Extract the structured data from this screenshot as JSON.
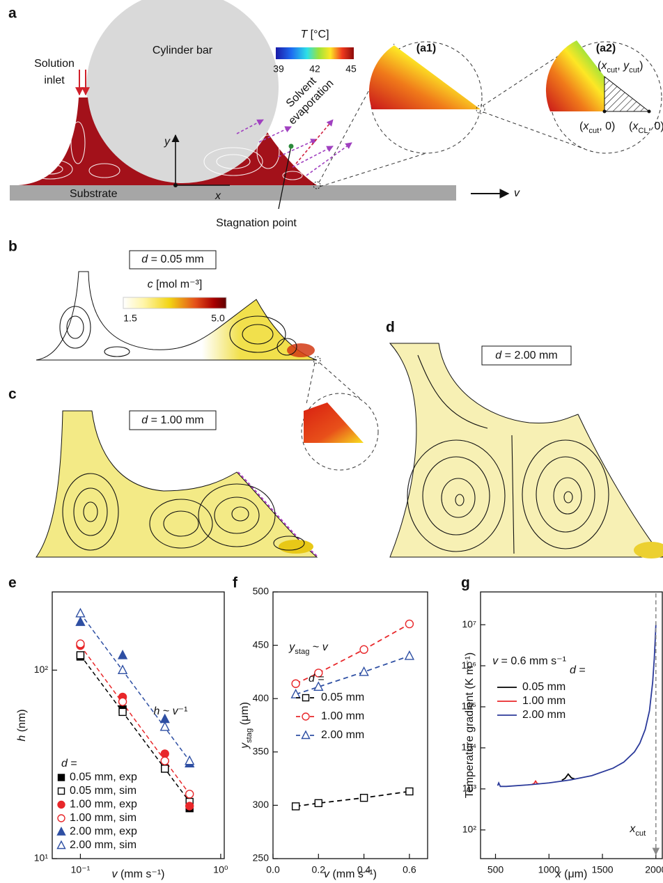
{
  "figure": {
    "a": {
      "label": "a",
      "cylinder": "Cylinder bar",
      "inlet": [
        "Solution",
        "inlet"
      ],
      "substrate": "Substrate",
      "colorbar_title": [
        {
          "i": "T"
        },
        {
          "t": " [°C]"
        }
      ],
      "colorbar_ticks": [
        "39",
        "42",
        "45"
      ],
      "evaporation": [
        "Solvent",
        "evaporation"
      ],
      "y_axis": [
        {
          "i": "y"
        }
      ],
      "x_axis": [
        {
          "i": "x"
        }
      ],
      "stagnation": "Stagnation point",
      "velocity": [
        {
          "i": "v"
        }
      ],
      "inset1": "(a1)",
      "inset2": "(a2)",
      "point_top": [
        {
          "t": "("
        },
        {
          "i": "x"
        },
        {
          "sub": "cut"
        },
        {
          "t": ", "
        },
        {
          "i": "y"
        },
        {
          "sub": "cut"
        },
        {
          "t": ")"
        }
      ],
      "point_cut": [
        {
          "t": "("
        },
        {
          "i": "x"
        },
        {
          "sub": "cut"
        },
        {
          "t": ", 0)"
        }
      ],
      "point_cl": [
        {
          "t": "("
        },
        {
          "i": "x"
        },
        {
          "sub": "CL"
        },
        {
          "t": ", 0),"
        }
      ]
    },
    "b": {
      "label": "b",
      "condition": [
        {
          "i": "d"
        },
        {
          "t": " = 0.05 mm"
        }
      ],
      "colorbar_title": [
        {
          "i": "c"
        },
        {
          "t": " [mol m⁻³]"
        }
      ],
      "colorbar_ticks": [
        "1.5",
        "5.0"
      ]
    },
    "c": {
      "label": "c",
      "condition": [
        {
          "i": "d"
        },
        {
          "t": " = 1.00 mm"
        }
      ]
    },
    "d": {
      "label": "d",
      "condition": [
        {
          "i": "d"
        },
        {
          "t": " = 2.00 mm"
        }
      ]
    }
  },
  "chart_data": [
    {
      "type": "scatter",
      "label": "e",
      "xscale": "log",
      "yscale": "log",
      "xlim": [
        0.063,
        1.06
      ],
      "ylim": [
        10,
        260
      ],
      "xticks": [
        {
          "value": 0.1,
          "label": "10⁻¹"
        },
        {
          "value": 1,
          "label": "10⁰"
        }
      ],
      "yticks": [
        {
          "value": 10,
          "label": "10¹"
        },
        {
          "value": 100,
          "label": "10²"
        }
      ],
      "xlabel": [
        {
          "i": "v"
        },
        {
          "t": " (mm s⁻¹)"
        }
      ],
      "ylabel": [
        {
          "i": "h"
        },
        {
          "t": " (nm)"
        }
      ],
      "annotation": [
        {
          "i": "h"
        },
        {
          "t": " ~ "
        },
        {
          "i": "v"
        },
        {
          "t": "⁻¹"
        }
      ],
      "legend_title": [
        {
          "i": "d"
        },
        {
          "t": " ="
        }
      ],
      "legend": "lower left",
      "x": [
        0.1,
        0.2,
        0.4,
        0.6
      ],
      "series": [
        {
          "name": "0.05 mm, exp",
          "color": "#000000",
          "marker": "square",
          "filled": true,
          "values": [
            118,
            62,
            30,
            18.5
          ]
        },
        {
          "name": "0.05 mm, sim",
          "color": "#000000",
          "marker": "square",
          "filled": false,
          "values": [
            120,
            60,
            30,
            20
          ]
        },
        {
          "name": "1.00 mm, exp",
          "color": "#e8272a",
          "marker": "circle",
          "filled": true,
          "values": [
            135,
            72,
            36,
            19
          ]
        },
        {
          "name": "1.00 mm, sim",
          "color": "#e8272a",
          "marker": "circle",
          "filled": false,
          "values": [
            138,
            68,
            33,
            22
          ]
        },
        {
          "name": "2.00 mm, exp",
          "color": "#2e4fa3",
          "marker": "triangle",
          "filled": true,
          "values": [
            180,
            120,
            55,
            32
          ]
        },
        {
          "name": "2.00 mm, sim",
          "color": "#2e4fa3",
          "marker": "triangle",
          "filled": false,
          "values": [
            200,
            100,
            50,
            33
          ]
        }
      ],
      "fits": [
        {
          "color": "#000000",
          "x": [
            0.1,
            0.6
          ],
          "values": [
            120,
            20
          ]
        },
        {
          "color": "#e8272a",
          "x": [
            0.1,
            0.6
          ],
          "values": [
            135,
            22
          ]
        },
        {
          "color": "#2e4fa3",
          "x": [
            0.1,
            0.6
          ],
          "values": [
            200,
            33
          ]
        }
      ]
    },
    {
      "type": "line",
      "label": "f",
      "dashed": true,
      "xlim": [
        0,
        0.68
      ],
      "ylim": [
        250,
        500
      ],
      "xticks": [
        {
          "value": 0,
          "label": "0.0"
        },
        0.2,
        0.4,
        0.6
      ],
      "yticks": [
        250,
        300,
        350,
        400,
        450,
        500
      ],
      "xlabel": [
        {
          "i": "v"
        },
        {
          "t": " (mm s⁻¹)"
        }
      ],
      "ylabel": [
        {
          "i": "y"
        },
        {
          "sub": "stag"
        },
        {
          "t": " (μm)"
        }
      ],
      "annotation": [
        {
          "i": "y"
        },
        {
          "sub": "stag"
        },
        {
          "t": " ~ "
        },
        {
          "i": "v"
        }
      ],
      "legend_title": [
        {
          "i": "d"
        },
        {
          "t": " ="
        }
      ],
      "legend": "center",
      "x": [
        0.1,
        0.2,
        0.4,
        0.6
      ],
      "series": [
        {
          "name": "0.05 mm",
          "color": "#000000",
          "marker": "square",
          "filled": false,
          "values": [
            299,
            302,
            307,
            313
          ]
        },
        {
          "name": "1.00 mm",
          "color": "#e8272a",
          "marker": "circle",
          "filled": false,
          "values": [
            414,
            424,
            446,
            470
          ]
        },
        {
          "name": "2.00 mm",
          "color": "#2e4fa3",
          "marker": "triangle",
          "filled": false,
          "values": [
            404,
            411,
            425,
            440
          ]
        }
      ]
    },
    {
      "type": "line",
      "label": "g",
      "yscale": "log",
      "xlim": [
        360,
        2060
      ],
      "ylim": [
        20,
        63000000
      ],
      "xticks": [
        500,
        1000,
        1500,
        2000
      ],
      "yticks": [
        {
          "value": 100,
          "label": "10²"
        },
        {
          "value": 1000,
          "label": "10³"
        },
        {
          "value": 10000,
          "label": "10⁴"
        },
        {
          "value": 100000,
          "label": "10⁵"
        },
        {
          "value": 1000000,
          "label": "10⁶"
        },
        {
          "value": 10000000,
          "label": "10⁷"
        }
      ],
      "xlabel": [
        {
          "i": "x"
        },
        {
          "t": " (μm)"
        }
      ],
      "ylabel": "Temperature gradient (K m⁻¹)",
      "annotation": [
        {
          "i": "v"
        },
        {
          "t": " = 0.6 mm s⁻¹"
        }
      ],
      "legend_title": [
        {
          "i": "d"
        },
        {
          "t": " ="
        }
      ],
      "legend": "upper left",
      "cutoff": {
        "x": 2000,
        "label": [
          {
            "i": "x"
          },
          {
            "sub": "cut"
          }
        ]
      },
      "series": [
        {
          "name": "0.05 mm",
          "color": "#000000",
          "x": [
            1120,
            1150,
            1180,
            1210,
            1240
          ],
          "values": [
            1620,
            1800,
            2300,
            1850,
            1750
          ]
        },
        {
          "name": "1.00 mm",
          "color": "#e8272a",
          "x": [
            840,
            860,
            875,
            890,
            910
          ],
          "values": [
            1280,
            1350,
            1550,
            1350,
            1320
          ]
        },
        {
          "name": "2.00 mm",
          "color": "#2b3a9a",
          "x": [
            520,
            530,
            545,
            600,
            800,
            1000,
            1200,
            1400,
            1600,
            1700,
            1800,
            1850,
            1900,
            1940,
            1970,
            1985,
            1995,
            2000
          ],
          "values": [
            1200,
            1400,
            1150,
            1150,
            1250,
            1400,
            1650,
            2100,
            3200,
            4500,
            8000,
            13000,
            28000,
            80000,
            400000,
            1500000,
            5000000,
            10000000
          ]
        }
      ]
    }
  ]
}
